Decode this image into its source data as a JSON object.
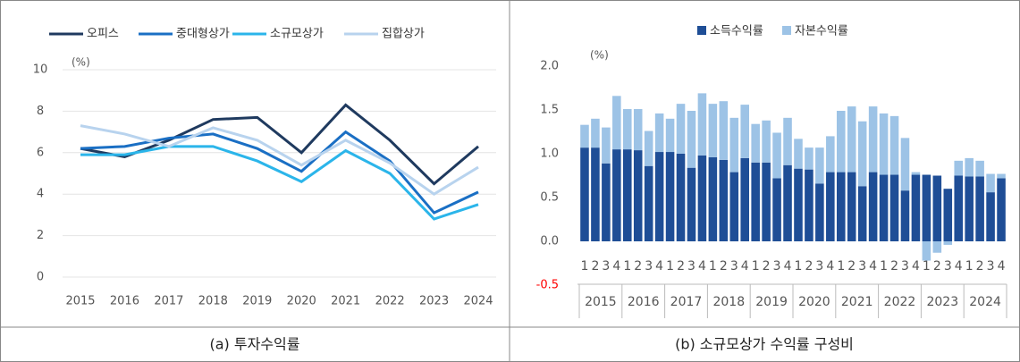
{
  "chart_data": [
    {
      "type": "line",
      "caption": "(a) 투자수익률",
      "y_unit_label": "(%)",
      "categories": [
        "2015",
        "2016",
        "2017",
        "2018",
        "2019",
        "2020",
        "2021",
        "2022",
        "2023",
        "2024"
      ],
      "series": [
        {
          "name": "오피스",
          "color": "#1f3a5f",
          "values": [
            6.2,
            5.8,
            6.6,
            7.6,
            7.7,
            6.0,
            8.3,
            6.6,
            4.5,
            6.3
          ]
        },
        {
          "name": "중대형상가",
          "color": "#1a6fc4",
          "values": [
            6.2,
            6.3,
            6.7,
            6.9,
            6.2,
            5.1,
            7.0,
            5.6,
            3.1,
            4.1
          ]
        },
        {
          "name": "소규모상가",
          "color": "#2bb5ea",
          "values": [
            5.9,
            5.9,
            6.3,
            6.3,
            5.6,
            4.6,
            6.1,
            5.0,
            2.8,
            3.5
          ]
        },
        {
          "name": "집합상가",
          "color": "#b8d3ee",
          "values": [
            7.3,
            6.9,
            6.3,
            7.2,
            6.6,
            5.4,
            6.6,
            5.5,
            4.0,
            5.3
          ]
        }
      ],
      "ylim": [
        0,
        10
      ],
      "yticks": [
        0,
        2,
        4,
        6,
        8,
        10
      ],
      "grid": true
    },
    {
      "type": "stacked_bar",
      "caption": "(b) 소규모상가 수익률 구성비",
      "y_unit_label": "(%)",
      "categories": [
        "1",
        "2",
        "3",
        "4",
        "1",
        "2",
        "3",
        "4",
        "1",
        "2",
        "3",
        "4",
        "1",
        "2",
        "3",
        "4",
        "1",
        "2",
        "3",
        "4",
        "1",
        "2",
        "3",
        "4",
        "1",
        "2",
        "3",
        "4",
        "1",
        "2",
        "3",
        "4",
        "1",
        "2",
        "3",
        "4",
        "1",
        "2",
        "3",
        "4"
      ],
      "years": [
        "2015",
        "2016",
        "2017",
        "2018",
        "2019",
        "2020",
        "2021",
        "2022",
        "2023",
        "2024"
      ],
      "series": [
        {
          "name": "소득수익률",
          "color": "#1f4e96",
          "values": [
            1.07,
            1.07,
            0.89,
            1.05,
            1.05,
            1.04,
            0.86,
            1.02,
            1.02,
            1.0,
            0.84,
            0.98,
            0.96,
            0.93,
            0.79,
            0.95,
            0.9,
            0.9,
            0.72,
            0.87,
            0.83,
            0.82,
            0.66,
            0.79,
            0.79,
            0.79,
            0.63,
            0.79,
            0.76,
            0.76,
            0.58,
            0.76,
            0.76,
            0.75,
            0.6,
            0.75,
            0.74,
            0.74,
            0.56,
            0.72
          ]
        },
        {
          "name": "자본수익률",
          "color": "#9dc3e6",
          "values": [
            0.26,
            0.33,
            0.41,
            0.61,
            0.46,
            0.47,
            0.4,
            0.44,
            0.38,
            0.57,
            0.65,
            0.71,
            0.61,
            0.67,
            0.62,
            0.61,
            0.44,
            0.48,
            0.52,
            0.54,
            0.34,
            0.25,
            0.41,
            0.41,
            0.7,
            0.75,
            0.74,
            0.75,
            0.7,
            0.67,
            0.6,
            0.03,
            -0.22,
            -0.13,
            -0.04,
            0.17,
            0.21,
            0.18,
            0.21,
            0.05
          ]
        }
      ],
      "ylim": [
        -0.5,
        2.0
      ],
      "yticks": [
        -0.5,
        {
          "value": 0,
          "label": "0.0"
        },
        0.5,
        {
          "value": 1,
          "label": "1.0"
        },
        1.5,
        {
          "value": 2,
          "label": "2.0"
        }
      ],
      "negative_tick_color": "#ff0000",
      "grid": false
    }
  ]
}
